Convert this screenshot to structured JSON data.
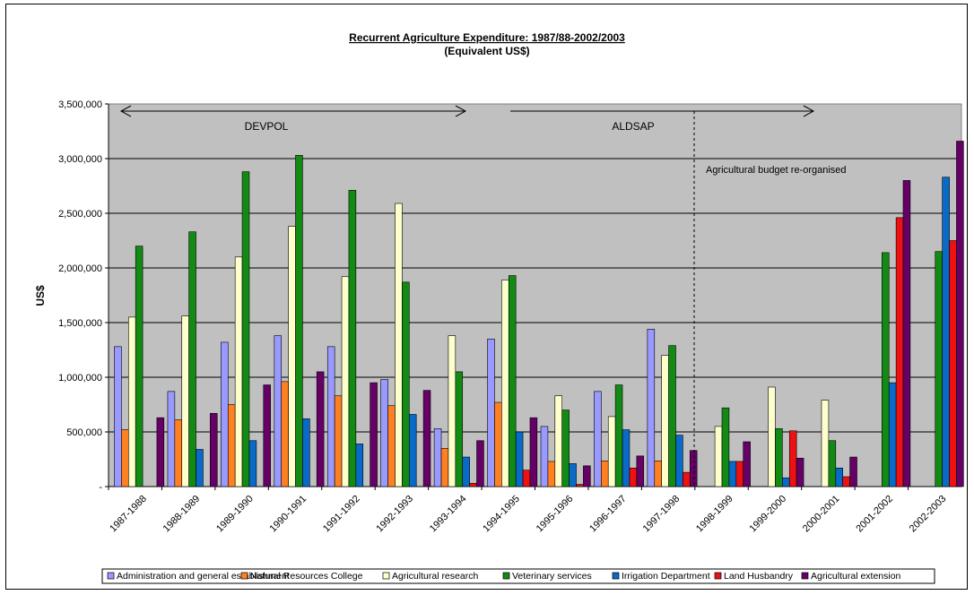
{
  "chart_data": {
    "type": "bar",
    "title": "Recurrent Agriculture Expenditure: 1987/88-2002/2003",
    "subtitle": "(Equivalent US$)",
    "xlabel": "",
    "ylabel": "US$",
    "ylim": [
      0,
      3500000
    ],
    "yticks": [
      0,
      500000,
      1000000,
      1500000,
      2000000,
      2500000,
      3000000,
      3500000
    ],
    "ytick_labels": [
      "-",
      "500,000",
      "1,000,000",
      "1,500,000",
      "2,000,000",
      "2,500,000",
      "3,000,000",
      "3,500,000"
    ],
    "grid": true,
    "legend_position": "bottom",
    "categories": [
      "1987-1988",
      "1988-1989",
      "1989-1990",
      "1990-1991",
      "1991-1992",
      "1992-1993",
      "1993-1994",
      "1994-1995",
      "1995-1996",
      "1996-1997",
      "1997-1998",
      "1998-1999",
      "1999-2000",
      "2000-2001",
      "2001-2002",
      "2002-2003"
    ],
    "series": [
      {
        "name": "Administration and general establishment",
        "color": "#9999ff",
        "values": [
          1280000,
          870000,
          1320000,
          1380000,
          1280000,
          980000,
          530000,
          1350000,
          550000,
          870000,
          1440000,
          0,
          0,
          0,
          0,
          0
        ]
      },
      {
        "name": "Natural Resources College",
        "color": "#ff8020",
        "values": [
          520000,
          610000,
          750000,
          960000,
          830000,
          740000,
          350000,
          770000,
          230000,
          235000,
          235000,
          0,
          0,
          0,
          0,
          0
        ]
      },
      {
        "name": "Agricultural research",
        "color": "#ffffcc",
        "values": [
          1550000,
          1560000,
          2100000,
          2380000,
          1920000,
          2590000,
          1380000,
          1890000,
          830000,
          640000,
          1200000,
          550000,
          910000,
          790000,
          0,
          0
        ]
      },
      {
        "name": "Veterinary services",
        "color": "#138a13",
        "values": [
          2200000,
          2330000,
          2880000,
          3030000,
          2710000,
          1870000,
          1050000,
          1930000,
          700000,
          930000,
          1290000,
          720000,
          530000,
          420000,
          2140000,
          2150000
        ]
      },
      {
        "name": "Irrigation Department",
        "color": "#0a6ac8",
        "values": [
          0,
          340000,
          420000,
          620000,
          390000,
          660000,
          270000,
          500000,
          210000,
          520000,
          470000,
          230000,
          80000,
          170000,
          950000,
          2830000
        ]
      },
      {
        "name": "Land Husbandry",
        "color": "#ee1111",
        "values": [
          0,
          0,
          0,
          0,
          0,
          0,
          30000,
          150000,
          20000,
          170000,
          130000,
          230000,
          510000,
          90000,
          2460000,
          2250000
        ]
      },
      {
        "name": "Agricultural extension",
        "color": "#660066",
        "values": [
          630000,
          670000,
          930000,
          1050000,
          950000,
          880000,
          420000,
          630000,
          190000,
          280000,
          330000,
          410000,
          260000,
          270000,
          2800000,
          3160000
        ]
      }
    ],
    "annotations": {
      "devpol": "DEVPOL",
      "aldsap": "ALDSAP",
      "reorganised": "Agricultural budget re-organised"
    }
  }
}
